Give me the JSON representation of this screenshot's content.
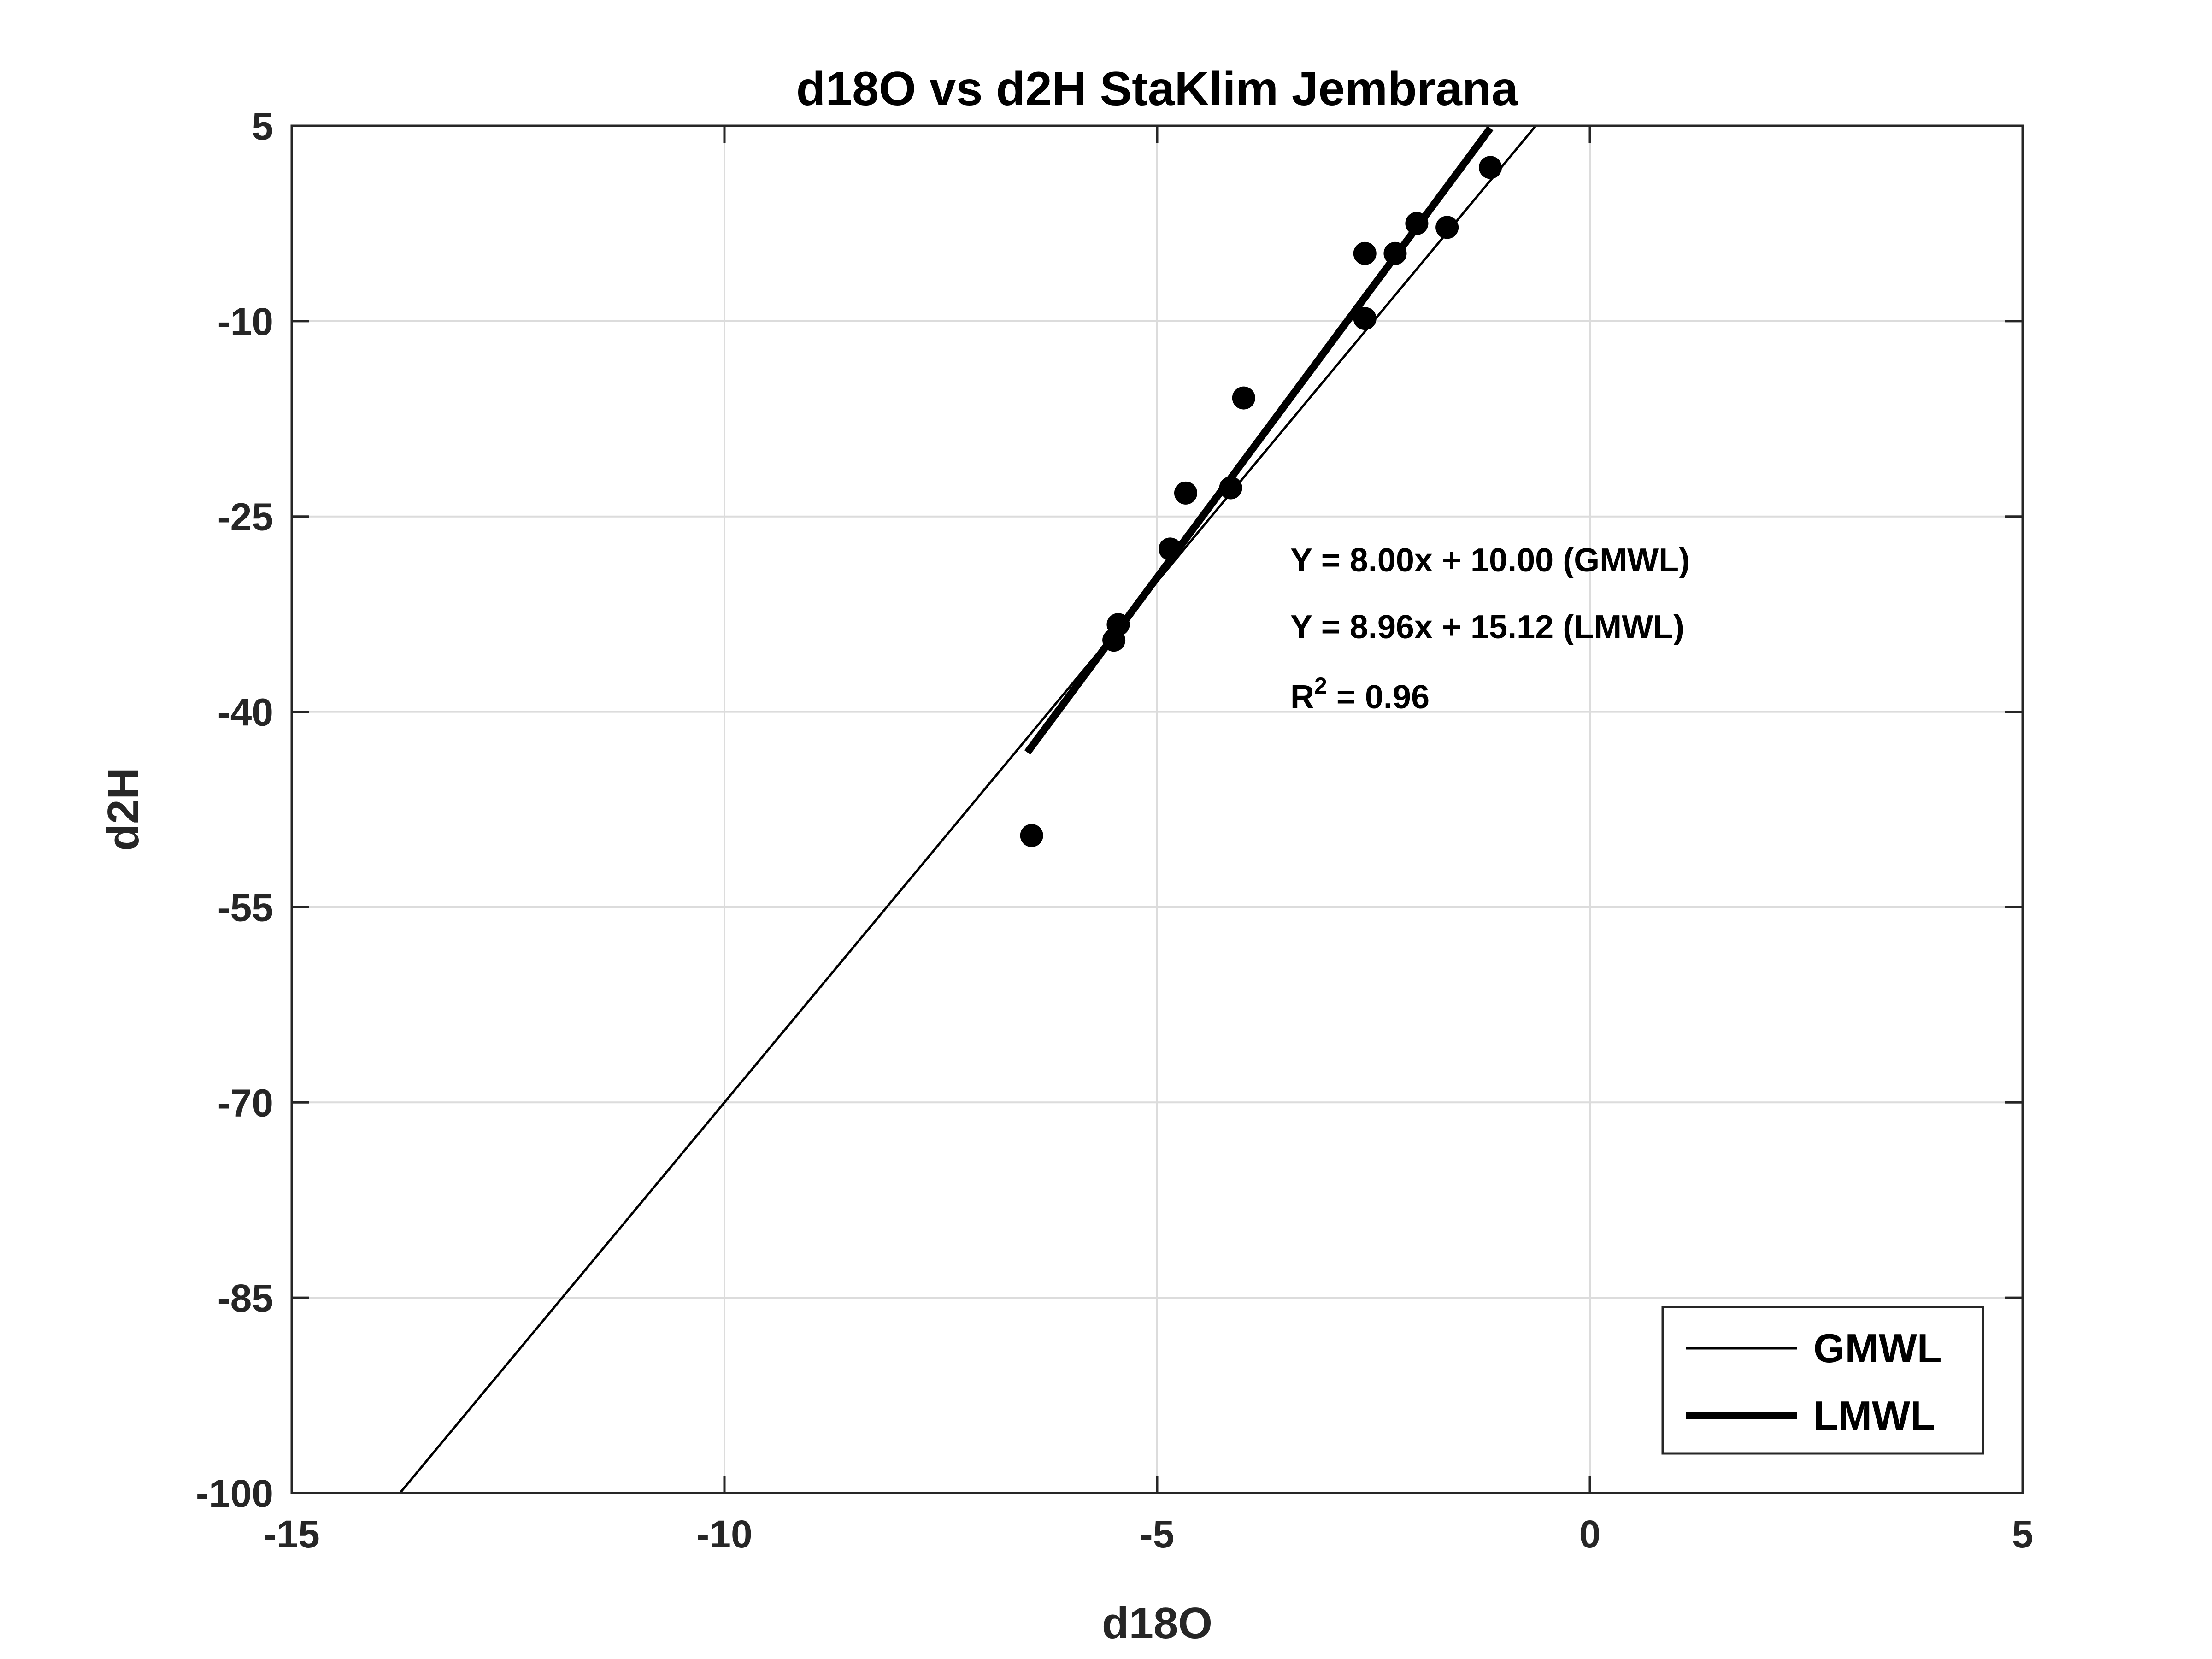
{
  "chart_data": {
    "type": "scatter",
    "title": "d18O vs d2H StaKlim Jembrana",
    "xlabel": "d18O",
    "ylabel": "d2H",
    "xlim": [
      -15,
      5
    ],
    "ylim": [
      -100,
      5
    ],
    "xticks": [
      -15,
      -10,
      -5,
      0,
      5
    ],
    "yticks": [
      -100,
      -85,
      -70,
      -55,
      -40,
      -25,
      -10,
      5
    ],
    "xtick_labels": [
      "-15",
      "-10",
      "-5",
      "0",
      "5"
    ],
    "ytick_labels": [
      "-100",
      "-85",
      "-70",
      "-55",
      "-40",
      "-25",
      "-10",
      "5"
    ],
    "grid": true,
    "points": [
      {
        "x": -6.45,
        "y": -49.5
      },
      {
        "x": -5.5,
        "y": -34.5
      },
      {
        "x": -5.45,
        "y": -33.3
      },
      {
        "x": -4.85,
        "y": -27.5
      },
      {
        "x": -4.67,
        "y": -23.2
      },
      {
        "x": -4.15,
        "y": -22.8
      },
      {
        "x": -4.0,
        "y": -15.9
      },
      {
        "x": -2.6,
        "y": -9.8
      },
      {
        "x": -2.6,
        "y": -4.8
      },
      {
        "x": -2.25,
        "y": -4.8
      },
      {
        "x": -2.0,
        "y": -2.5
      },
      {
        "x": -1.65,
        "y": -2.8
      },
      {
        "x": -1.15,
        "y": 1.8
      }
    ],
    "series": [
      {
        "name": "GMWL",
        "slope": 8.0,
        "intercept": 10.0,
        "x_range": [
          -13.75,
          -0.62
        ],
        "line_width": "thin"
      },
      {
        "name": "LMWL",
        "slope": 8.96,
        "intercept": 15.12,
        "x_range": [
          -6.5,
          -1.15
        ],
        "line_width": "thick"
      }
    ],
    "annotations": {
      "gmwl_equation": "Y = 8.00x + 10.00 (GMWL)",
      "lmwl_equation": "Y = 8.96x + 15.12 (LMWL)",
      "r2_prefix": "R",
      "r2_superscript": "2",
      "r2_value": " = 0.96"
    },
    "legend": {
      "placement": "bottom-right",
      "entries": [
        "GMWL",
        "LMWL"
      ]
    }
  }
}
